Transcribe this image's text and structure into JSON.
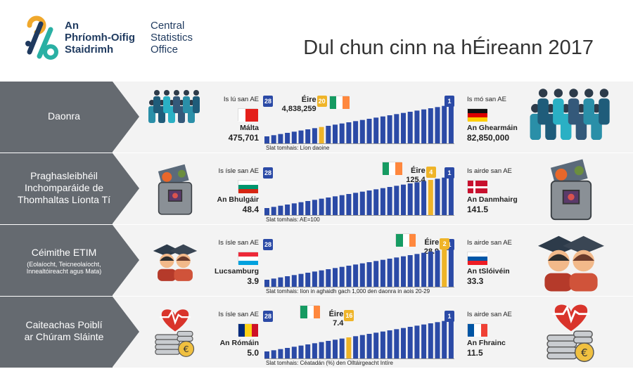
{
  "header": {
    "logo_ga": [
      "An",
      "Phríomh-Oifig",
      "Staidrimh"
    ],
    "logo_en": [
      "Central",
      "Statistics",
      "Office"
    ],
    "title": "Dul chun cinn na hÉireann 2017"
  },
  "colors": {
    "bar": "#2b4aa6",
    "ireland_bar": "#efb428",
    "label_panel": "#656a70",
    "row_bg": "#f3f3f3"
  },
  "rows": [
    {
      "label": "Daonra",
      "sublabel": "",
      "low_text": "Is lú san AE",
      "low_country": "Málta",
      "low_value": "475,701",
      "high_text": "Is mó san AE",
      "high_country": "An Ghearmáin",
      "high_value": "82,850,000",
      "ireland_name": "Éire",
      "ireland_value": "4,838,259",
      "low_rank": "28",
      "high_rank": "1",
      "ireland_rank": "20",
      "scale_text": "Slat tomhais: Líon daoine",
      "low_flag": "malta-flag",
      "high_flag": "germany-flag",
      "illustration_left": "small-crowd-icon",
      "illustration_right": "large-crowd-icon"
    },
    {
      "label": "Praghasleibhéil\nInchomparáide de\nThomhaltas Líonta Tí",
      "sublabel": "",
      "low_text": "Is ísle san AE",
      "low_country": "An Bhulgáir",
      "low_value": "48.4",
      "high_text": "Is airde san AE",
      "high_country": "An Danmhairg",
      "high_value": "141.5",
      "ireland_name": "Éire",
      "ireland_value": "125.4",
      "low_rank": "28",
      "high_rank": "1",
      "ireland_rank": "4",
      "scale_text": "Slat tomhais: AE=100",
      "low_flag": "bulgaria-flag",
      "high_flag": "denmark-flag",
      "illustration_left": "small-shopping-bag-icon",
      "illustration_right": "large-shopping-bag-icon"
    },
    {
      "label": "Céimithe ETIM",
      "sublabel": "(Eolaíocht, Teicneolaíocht,\nInnealtóireacht agus Mata)",
      "low_text": "Is ísle san AE",
      "low_country": "Lucsamburg",
      "low_value": "3.9",
      "high_text": "Is airde san AE",
      "high_country": "An tSlóivéin",
      "high_value": "33.3",
      "ireland_name": "Éire",
      "ireland_value": "28.9",
      "low_rank": "28",
      "high_rank": "1",
      "ireland_rank": "2",
      "scale_text": "Slat tomhais: líon in aghaidh gach 1,000 den daonra in aois 20-29",
      "low_flag": "luxembourg-flag",
      "high_flag": "slovenia-flag",
      "illustration_left": "small-graduates-icon",
      "illustration_right": "large-graduates-icon"
    },
    {
      "label": "Caiteachas Poiblí\nar Chúram Sláinte",
      "sublabel": "",
      "low_text": "Is ísle san AE",
      "low_country": "An Rómáin",
      "low_value": "5.0",
      "high_text": "Is airde san AE",
      "high_country": "An Fhrainc",
      "high_value": "11.5",
      "ireland_name": "Éire",
      "ireland_value": "7.4",
      "low_rank": "28",
      "high_rank": "1",
      "ireland_rank": "16",
      "scale_text": "Slat tomhais: Céatadán (%) den Olltáirgeacht Intíre",
      "low_flag": "romania-flag",
      "high_flag": "france-flag",
      "illustration_left": "small-coins-heart-icon",
      "illustration_right": "large-coins-heart-icon"
    }
  ]
}
